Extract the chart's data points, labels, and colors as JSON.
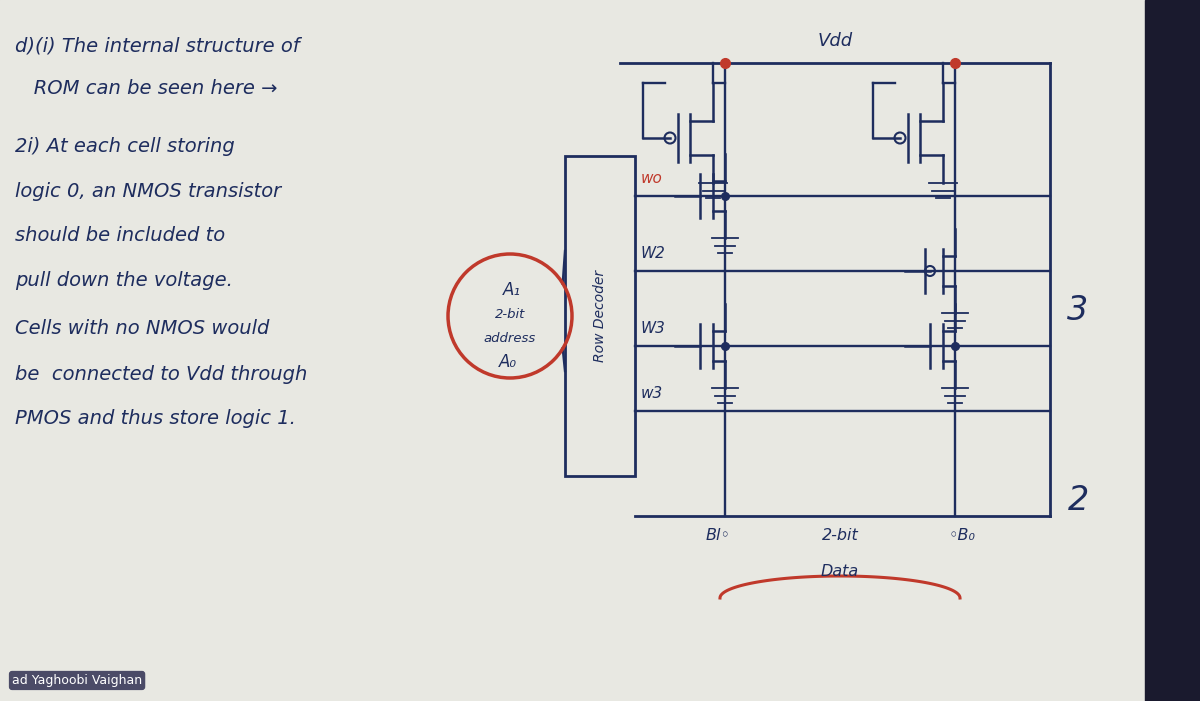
{
  "bg_color": "#d8d8d5",
  "paper_color": "#e8e8e2",
  "ink_color": "#1e2d5e",
  "red_color": "#c0392b",
  "sidebar_color": "#1a1a2e",
  "title1": "d)(i) The internal structure of",
  "title2": "   ROM can be seen here →",
  "line3": "2i) At each cell storing",
  "line4": "logic 0, an NMOS transistor",
  "line5": "should be included to",
  "line6": "pull down the voltage.",
  "line7": "Cells with no NMOS would",
  "line8": "be  connected to Vdd through",
  "line9": "PMOS and thus store logic 1.",
  "watermark": "ad Yaghoobi Vaighan",
  "label_3": "3",
  "label_2": "2"
}
